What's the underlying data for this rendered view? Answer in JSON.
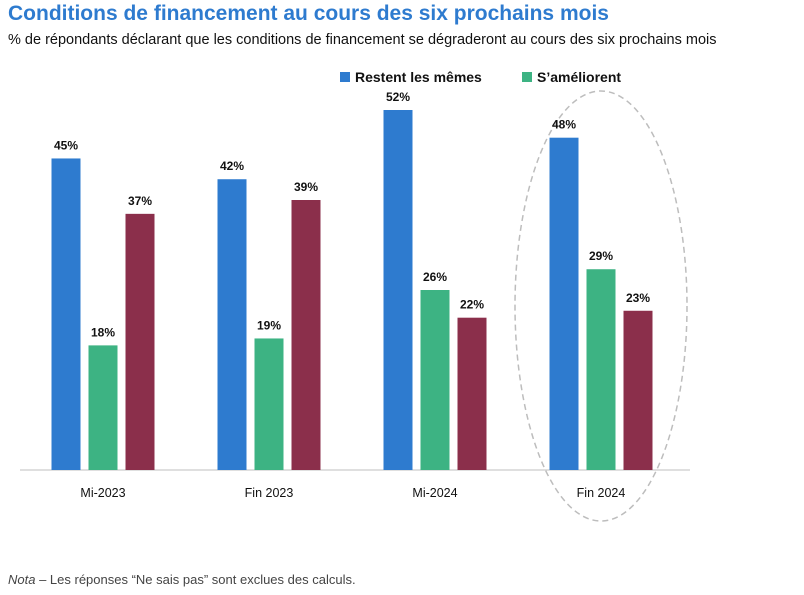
{
  "title": "Conditions de financement au cours des six prochains mois",
  "subtitle": "% de répondants déclarant que les conditions de financement se dégraderont au cours des six prochains mois",
  "note": {
    "prefix": "Nota",
    "text": " – Les réponses “Ne sais pas” sont exclues des calculs."
  },
  "chart_data": {
    "type": "bar",
    "categories": [
      "Mi-2023",
      "Fin 2023",
      "Mi-2024",
      "Fin 2024"
    ],
    "series": [
      {
        "name": "Restent les mêmes",
        "color": "#2E7BCF",
        "values": [
          45,
          42,
          52,
          48
        ]
      },
      {
        "name": "S’améliorent",
        "color": "#3DB383",
        "values": [
          18,
          19,
          26,
          29
        ]
      },
      {
        "name": "",
        "color": "#8B2F4B",
        "values": [
          37,
          39,
          22,
          23
        ]
      }
    ],
    "value_suffix": "%",
    "ylim": [
      0,
      52
    ],
    "grid": false,
    "legend": "top-right",
    "highlight_category": "Fin 2024"
  }
}
